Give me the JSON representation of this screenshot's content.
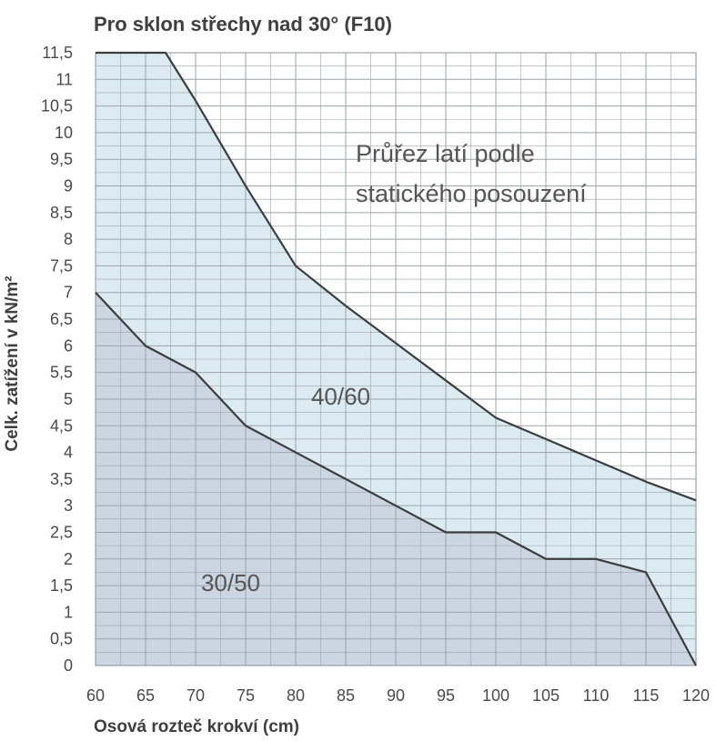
{
  "chart_data": {
    "type": "area",
    "title": "Pro sklon střechy nad 30° (F10)",
    "xlabel": "Osová rozteč krokví (cm)",
    "ylabel": "Celk. zatížení v kN/m²",
    "x_ticks": [
      "60",
      "65",
      "70",
      "75",
      "80",
      "85",
      "90",
      "95",
      "100",
      "105",
      "110",
      "115",
      "120"
    ],
    "y_ticks": [
      "0",
      "0,5",
      "1",
      "1,5",
      "2",
      "2,5",
      "3",
      "3,5",
      "4",
      "4,5",
      "5",
      "5,5",
      "6",
      "6,5",
      "7",
      "7,5",
      "8",
      "8,5",
      "9",
      "9,5",
      "10",
      "10,5",
      "11",
      "11,5"
    ],
    "xlim": [
      60,
      120
    ],
    "ylim": [
      0,
      11.5
    ],
    "grid": true,
    "series": [
      {
        "name": "30/50",
        "x": [
          60,
          65,
          70,
          75,
          80,
          85,
          90,
          95,
          100,
          105,
          110,
          115,
          120
        ],
        "y": [
          7.0,
          6.0,
          5.5,
          4.5,
          4.0,
          3.5,
          3.0,
          2.5,
          2.5,
          2.0,
          2.0,
          1.75,
          0.0
        ]
      },
      {
        "name": "40/60",
        "x": [
          60,
          67,
          70,
          75,
          80,
          85,
          90,
          95,
          100,
          105,
          110,
          115,
          120
        ],
        "y": [
          11.5,
          11.5,
          10.6,
          9.0,
          7.5,
          6.75,
          6.05,
          5.35,
          4.65,
          4.25,
          3.85,
          3.45,
          3.1
        ]
      }
    ],
    "annotations": [
      "Průřez latí podle",
      "statického posouzení"
    ],
    "colors": {
      "area_30_50": "#cbd6e2",
      "area_40_60": "#dcebf2",
      "line": "#3d3d3d",
      "grid": "#9aa3aa"
    }
  }
}
